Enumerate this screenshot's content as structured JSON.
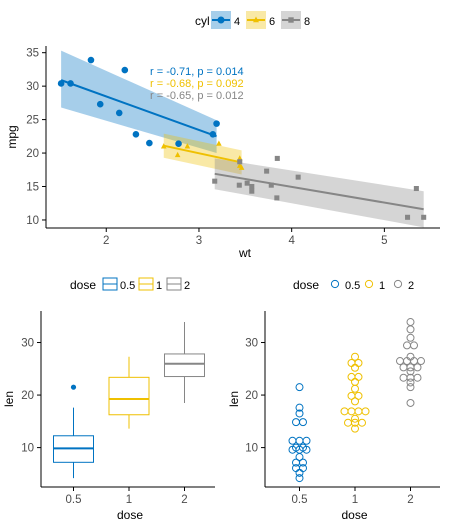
{
  "colors": {
    "c4": "#0073C2",
    "c6": "#EFC000",
    "c8": "#868686",
    "axis": "#000000",
    "tick_text": "#4D4D4D"
  },
  "chart_data": [
    {
      "type": "scatter",
      "legend": {
        "title": "cyl",
        "position": "top",
        "labels": [
          "4",
          "6",
          "8"
        ]
      },
      "xlabel": "wt",
      "ylabel": "mpg",
      "xlim": [
        1.35,
        5.6
      ],
      "ylim": [
        8.8,
        36
      ],
      "xticks": [
        2,
        3,
        4,
        5
      ],
      "yticks": [
        10,
        15,
        20,
        25,
        30,
        35
      ],
      "annotations": [
        "r = -0.71, p = 0.014",
        "r = -0.68, p = 0.092",
        "r = -0.65, p = 0.012"
      ],
      "series": [
        {
          "name": "4",
          "points": [
            [
              1.513,
              30.4
            ],
            [
              1.615,
              30.4
            ],
            [
              1.835,
              33.9
            ],
            [
              1.935,
              27.3
            ],
            [
              2.14,
              26.0
            ],
            [
              2.2,
              32.4
            ],
            [
              2.32,
              22.8
            ],
            [
              2.465,
              21.5
            ],
            [
              3.15,
              22.8
            ],
            [
              3.19,
              24.4
            ],
            [
              2.78,
              21.4
            ]
          ],
          "fit": {
            "x": [
              1.513,
              3.19
            ],
            "y": [
              30.9,
              22.5
            ],
            "band_lo": [
              26.8,
              20.0
            ],
            "band_hi": [
              35.3,
              24.9
            ]
          }
        },
        {
          "name": "6",
          "points": [
            [
              2.62,
              21.0
            ],
            [
              2.875,
              21.0
            ],
            [
              3.215,
              21.4
            ],
            [
              3.44,
              18.1
            ],
            [
              3.44,
              19.2
            ],
            [
              3.46,
              17.8
            ],
            [
              2.77,
              19.7
            ]
          ],
          "fit": {
            "x": [
              2.62,
              3.46
            ],
            "y": [
              21.1,
              18.6
            ],
            "band_lo": [
              19.3,
              16.8
            ],
            "band_hi": [
              22.9,
              20.4
            ]
          }
        },
        {
          "name": "8",
          "points": [
            [
              3.44,
              18.7
            ],
            [
              3.57,
              14.3
            ],
            [
              3.52,
              15.5
            ],
            [
              3.435,
              15.2
            ],
            [
              3.84,
              13.3
            ],
            [
              3.845,
              19.2
            ],
            [
              3.73,
              17.3
            ],
            [
              3.78,
              15.2
            ],
            [
              4.07,
              16.4
            ],
            [
              5.25,
              10.4
            ],
            [
              5.424,
              10.4
            ],
            [
              5.345,
              14.7
            ],
            [
              3.17,
              15.8
            ],
            [
              3.57,
              15.0
            ]
          ],
          "fit": {
            "x": [
              3.17,
              5.424
            ],
            "y": [
              16.9,
              11.6
            ],
            "band_lo": [
              14.6,
              8.9
            ],
            "band_hi": [
              19.2,
              14.3
            ]
          }
        }
      ]
    },
    {
      "type": "box",
      "legend": {
        "title": "dose",
        "position": "top",
        "labels": [
          "0.5",
          "1",
          "2"
        ]
      },
      "xlabel": "dose",
      "ylabel": "len",
      "categories": [
        "0.5",
        "1",
        "2"
      ],
      "ylim": [
        2.5,
        36
      ],
      "yticks": [
        10,
        20,
        30
      ],
      "boxes": [
        {
          "min": 4.2,
          "q1": 7.2,
          "median": 9.85,
          "q3": 12.25,
          "max": 17.6,
          "outliers": [
            21.5
          ]
        },
        {
          "min": 13.6,
          "q1": 16.25,
          "median": 19.25,
          "q3": 23.375,
          "max": 27.3,
          "outliers": []
        },
        {
          "min": 18.5,
          "q1": 23.525,
          "median": 25.95,
          "q3": 27.825,
          "max": 33.9,
          "outliers": []
        }
      ]
    },
    {
      "type": "dotplot",
      "legend": {
        "title": "dose",
        "position": "top",
        "labels": [
          "0.5",
          "1",
          "2"
        ]
      },
      "xlabel": "dose",
      "ylabel": "len",
      "categories": [
        "0.5",
        "1",
        "2"
      ],
      "ylim": [
        2.5,
        36
      ],
      "yticks": [
        10,
        20,
        30
      ],
      "values": [
        [
          4.2,
          11.5,
          7.3,
          5.8,
          6.4,
          10.0,
          11.2,
          11.2,
          5.2,
          7.0,
          15.2,
          21.5,
          17.6,
          9.7,
          14.5,
          10.0,
          8.2,
          9.4,
          16.5,
          9.7
        ],
        [
          16.5,
          16.5,
          15.2,
          17.3,
          22.5,
          17.3,
          13.6,
          14.5,
          18.8,
          15.5,
          19.7,
          23.3,
          23.6,
          26.4,
          20.0,
          25.2,
          25.8,
          21.2,
          14.5,
          27.3
        ],
        [
          23.6,
          18.5,
          33.9,
          25.5,
          26.4,
          32.5,
          26.7,
          21.5,
          23.3,
          29.5,
          25.5,
          26.4,
          22.4,
          24.5,
          24.8,
          30.9,
          26.4,
          27.3,
          29.4,
          23.0
        ]
      ]
    }
  ]
}
